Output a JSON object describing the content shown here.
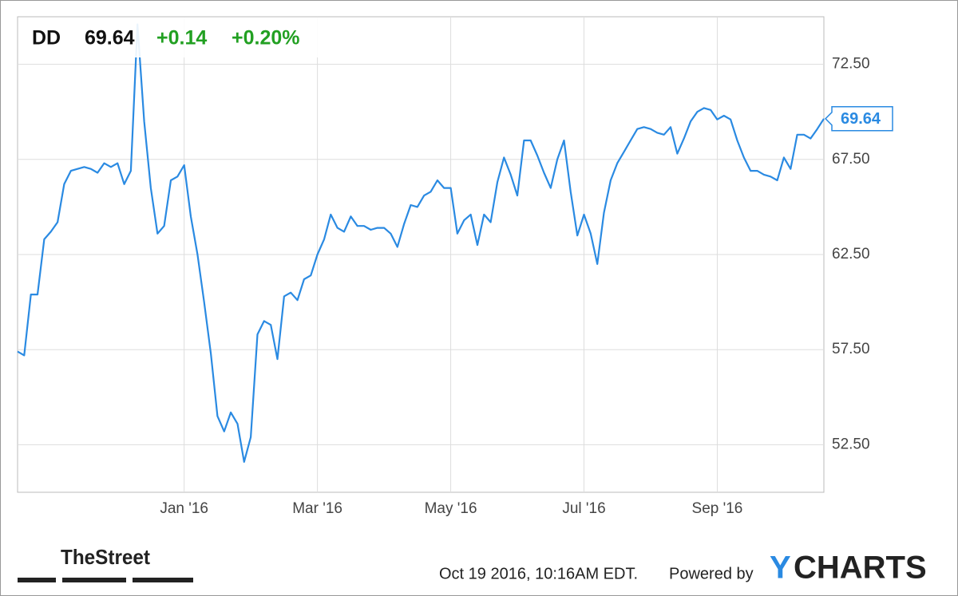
{
  "chart_data": {
    "type": "line",
    "ticker": "DD",
    "price": 69.64,
    "change": "+0.14",
    "change_pct": "+0.20%",
    "categories": [
      null,
      null,
      null,
      null,
      null,
      null,
      null,
      null,
      null,
      null,
      null,
      null,
      null,
      null,
      null,
      null,
      null,
      null,
      null,
      null,
      null,
      null,
      null,
      null,
      null,
      "Jan '16",
      null,
      null,
      null,
      null,
      null,
      null,
      null,
      null,
      null,
      null,
      null,
      null,
      null,
      null,
      null,
      null,
      null,
      null,
      null,
      "Mar '16",
      null,
      null,
      null,
      null,
      null,
      null,
      null,
      null,
      null,
      null,
      null,
      null,
      null,
      null,
      null,
      null,
      null,
      null,
      null,
      "May '16",
      null,
      null,
      null,
      null,
      null,
      null,
      null,
      null,
      null,
      null,
      null,
      null,
      null,
      null,
      null,
      null,
      null,
      null,
      null,
      "Jul '16",
      null,
      null,
      null,
      null,
      null,
      null,
      null,
      null,
      null,
      null,
      null,
      null,
      null,
      null,
      null,
      null,
      null,
      null,
      null,
      "Sep '16",
      null,
      null,
      null,
      null,
      null,
      null,
      null,
      null,
      null,
      null,
      null,
      null,
      null,
      null,
      null,
      null
    ],
    "series": [
      {
        "name": "DD",
        "color": "#2a8ae2",
        "values": [
          57.4,
          57.2,
          60.4,
          60.4,
          63.3,
          63.7,
          64.2,
          66.2,
          66.9,
          67.0,
          67.1,
          67.0,
          66.8,
          67.3,
          67.1,
          67.3,
          66.2,
          66.9,
          74.6,
          69.5,
          66.0,
          63.6,
          64.0,
          66.4,
          66.6,
          67.2,
          64.5,
          62.5,
          60.0,
          57.3,
          54.0,
          53.2,
          54.2,
          53.6,
          51.6,
          52.9,
          58.3,
          59.0,
          58.8,
          57.0,
          60.3,
          60.5,
          60.1,
          61.2,
          61.4,
          62.5,
          63.3,
          64.6,
          63.9,
          63.7,
          64.5,
          64.0,
          64.0,
          63.8,
          63.9,
          63.9,
          63.6,
          62.9,
          64.1,
          65.1,
          65.0,
          65.6,
          65.8,
          66.4,
          66.0,
          66.0,
          63.6,
          64.3,
          64.6,
          63.0,
          64.6,
          64.2,
          66.3,
          67.6,
          66.7,
          65.6,
          68.5,
          68.5,
          67.7,
          66.8,
          66.0,
          67.5,
          68.5,
          65.8,
          63.5,
          64.6,
          63.6,
          62.0,
          64.7,
          66.4,
          67.3,
          67.9,
          68.5,
          69.1,
          69.2,
          69.1,
          68.9,
          68.8,
          69.2,
          67.8,
          68.6,
          69.5,
          70.0,
          70.2,
          70.1,
          69.6,
          69.8,
          69.6,
          68.5,
          67.6,
          66.9,
          66.9,
          66.7,
          66.6,
          66.4,
          67.6,
          67.0,
          68.8,
          68.8,
          68.6,
          69.1,
          69.64
        ]
      }
    ],
    "ylim": [
      50,
      75
    ],
    "yticks": [
      {
        "value": 52.5,
        "label": "52.50"
      },
      {
        "value": 57.5,
        "label": "57.50"
      },
      {
        "value": 62.5,
        "label": "62.50"
      },
      {
        "value": 67.5,
        "label": "67.50"
      },
      {
        "value": 72.5,
        "label": "72.50"
      }
    ],
    "grid": true,
    "footer": {
      "source_logo": "TheStreet",
      "timestamp": "Oct 19 2016, 10:16AM EDT.",
      "powered_by": "Powered by",
      "brand_y": "Y",
      "brand_rest": "CHARTS"
    }
  }
}
